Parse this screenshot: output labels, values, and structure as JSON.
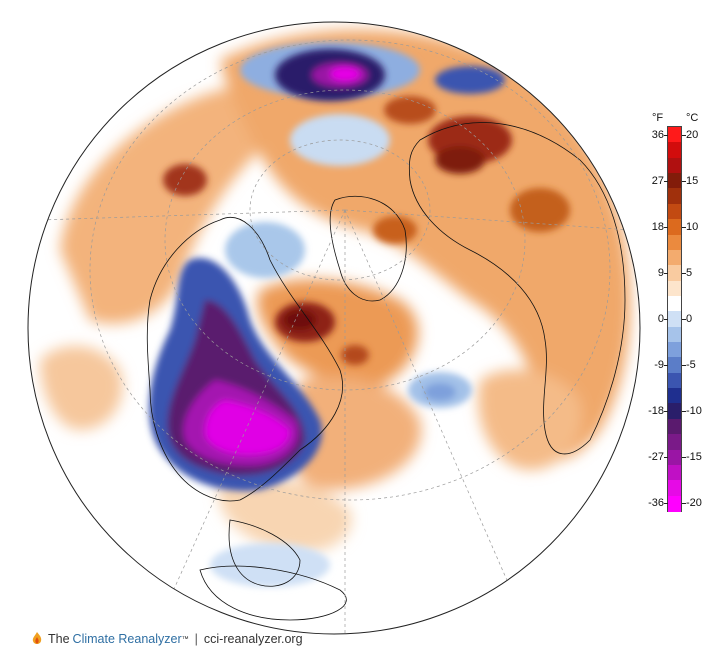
{
  "map": {
    "projection": "orthographic north-polar",
    "variable": "temperature anomaly",
    "description_colors": {
      "strong_cold": "#e100e6",
      "cold": "#8a1a9a",
      "cool": "#3b5bb5",
      "mild_cool": "#a9c7ea",
      "neutral": "#ffffff",
      "mild_warm": "#f6c9a2",
      "warm": "#e07a2c",
      "hot": "#8e1a1a"
    }
  },
  "legend": {
    "unit_f": "°F",
    "unit_c": "°C",
    "fahrenheit_ticks": [
      "36",
      "27",
      "18",
      "9",
      "0",
      "-9",
      "-18",
      "-27",
      "-36"
    ],
    "celsius_ticks": [
      "20",
      "15",
      "10",
      "5",
      "0",
      "-5",
      "-10",
      "-15",
      "-20"
    ],
    "colors": [
      "#ff00ff",
      "#e60ae6",
      "#c010c5",
      "#9a15a5",
      "#7a1a88",
      "#5a1a6e",
      "#2a1e6a",
      "#1f2f8f",
      "#3b55b0",
      "#5b7dc8",
      "#7ea0dc",
      "#a6c3ea",
      "#cfe0f5",
      "#ffffff",
      "#fde5cc",
      "#f9cba0",
      "#f3ab6e",
      "#eb8a3e",
      "#dc6a1e",
      "#c24a12",
      "#a0300c",
      "#821c0a",
      "#b01010",
      "#d20c0c",
      "#ff1a1a"
    ]
  },
  "footer": {
    "brand_the": "The",
    "brand_climate": "Climate",
    "brand_reanalyzer": "Reanalyzer",
    "brand_tm": "™",
    "separator": "|",
    "website": "cci-reanalyzer.org"
  }
}
